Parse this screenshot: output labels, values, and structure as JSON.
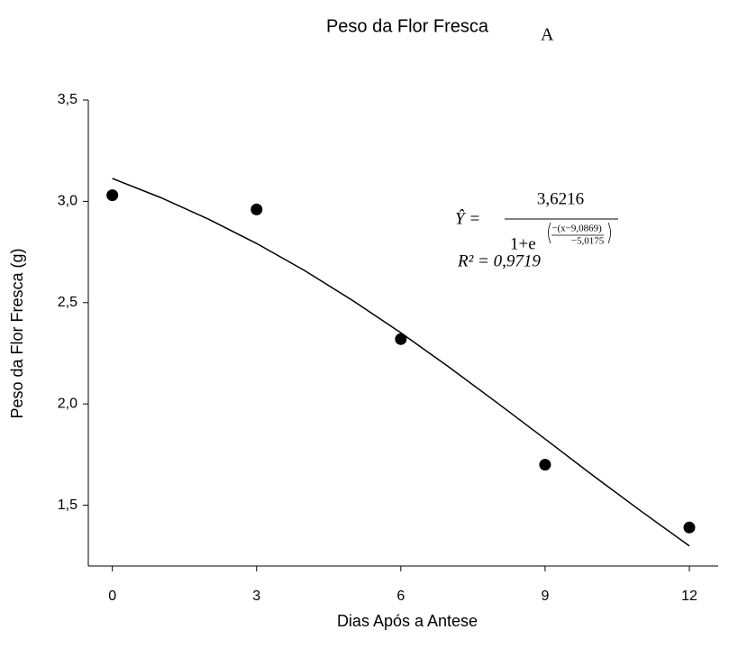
{
  "chart_data": {
    "type": "scatter",
    "title": "Peso da Flor Fresca",
    "panel_label": "A",
    "xlabel": "Dias Após a Antese",
    "ylabel": "Peso da Flor Fresca (g)",
    "xlim": [
      -0.5,
      12.6
    ],
    "ylim": [
      1.2,
      3.5
    ],
    "xticks": [
      0,
      3,
      6,
      9,
      12
    ],
    "yticks": [
      {
        "value": 1.5,
        "label": "1,5"
      },
      {
        "value": 2.0,
        "label": "2,0"
      },
      {
        "value": 2.5,
        "label": "2,5"
      },
      {
        "value": 3.0,
        "label": "3,0"
      },
      {
        "value": 3.5,
        "label": "3,5"
      }
    ],
    "points": {
      "color": "#000000",
      "x": [
        0,
        3,
        6,
        9,
        12
      ],
      "values": [
        3.03,
        2.96,
        2.32,
        1.7,
        1.39
      ]
    },
    "fit": {
      "color": "#000000",
      "x": [
        0,
        1,
        2,
        3,
        4,
        5,
        6,
        7,
        8,
        9,
        10,
        11,
        12
      ],
      "values": [
        3.113,
        3.019,
        2.912,
        2.792,
        2.658,
        2.51,
        2.351,
        2.182,
        2.006,
        1.827,
        1.646,
        1.47,
        1.299
      ]
    },
    "equation": {
      "lhs": "Ŷ =",
      "numerator": "3,6216",
      "denominator": "1+e",
      "exponent_numerator": "−(x−9,0869)",
      "exponent_denominator": "−5,0175",
      "r2": "R² = 0,9719"
    }
  }
}
